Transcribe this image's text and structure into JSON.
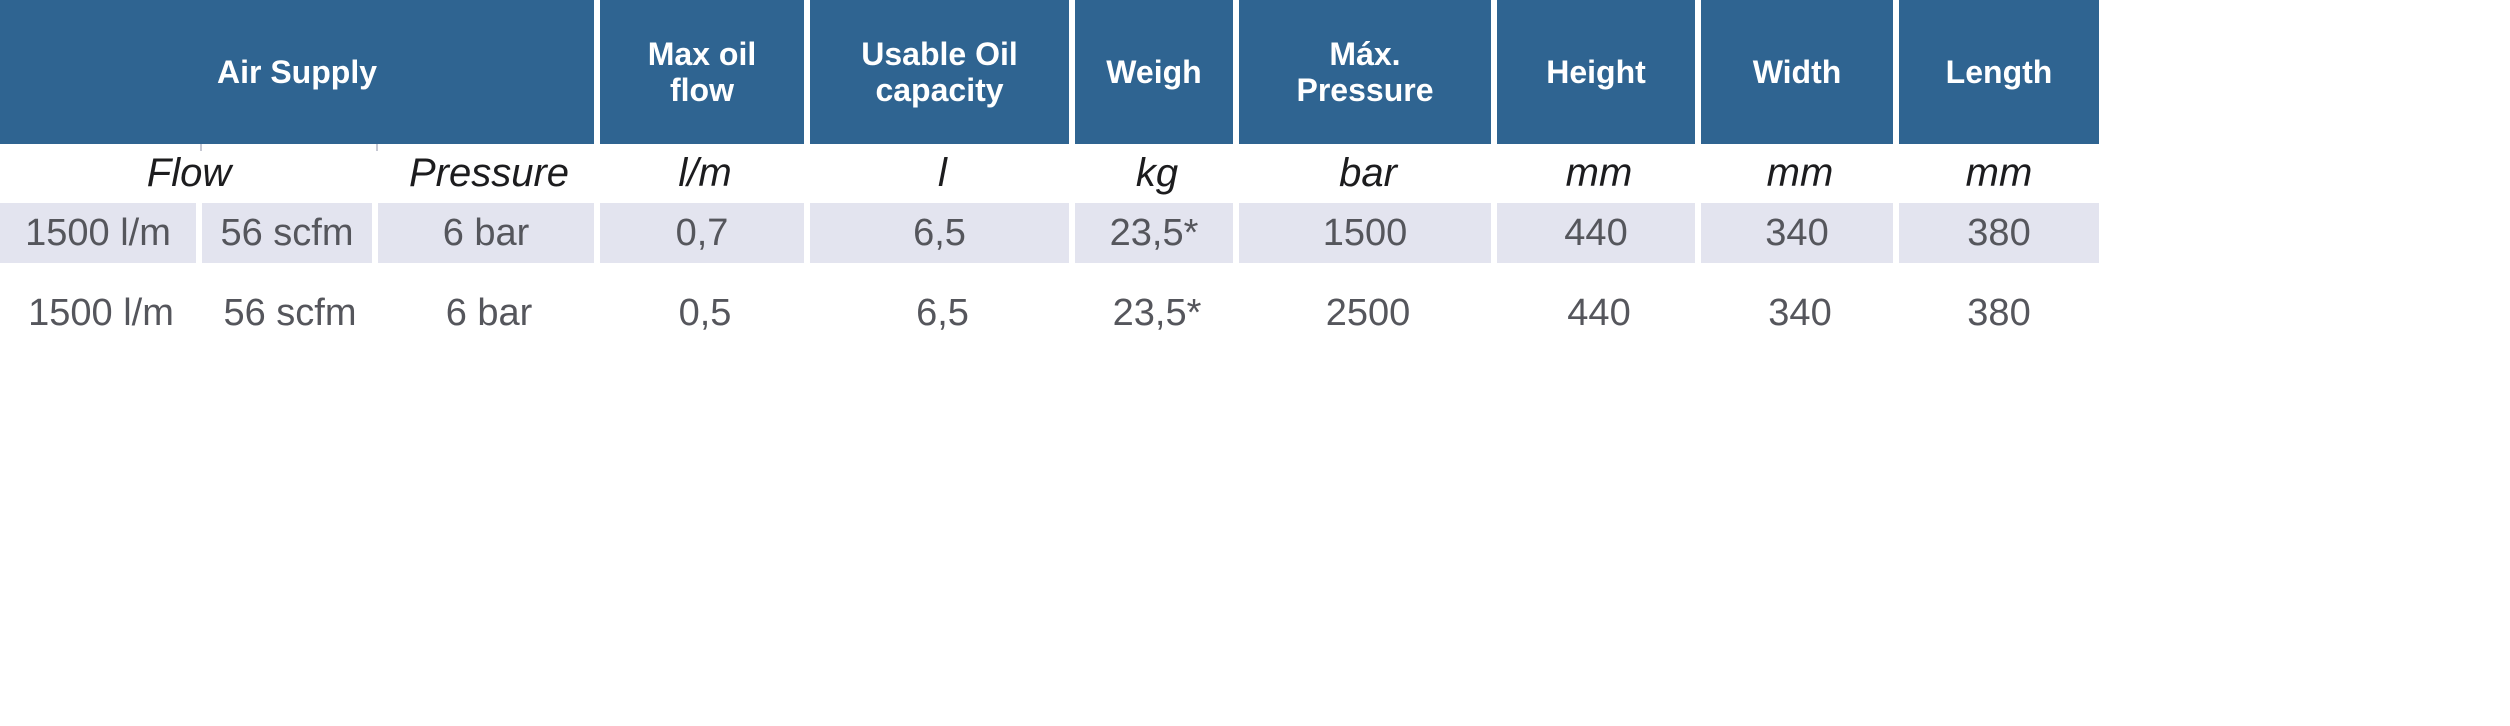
{
  "page": {
    "background": "#ffffff"
  },
  "table": {
    "accent_color": "#2f6491",
    "alt_row_color": "#e3e4ef",
    "header": {
      "air_supply": "Air Supply",
      "max_oil_flow": "Max oil\nflow",
      "usable_oil_capacity": "Usable Oil\ncapacity",
      "weigh": "Weigh",
      "max_pressure": "Máx.\nPressure",
      "height": "Height",
      "width": "Width",
      "length": "Length"
    },
    "units": {
      "flow": "Flow",
      "pressure": "Pressure",
      "max_oil_flow": "l/m",
      "usable_oil_capacity": "l",
      "weigh": "kg",
      "max_pressure": "bar",
      "height": "mm",
      "width": "mm",
      "length": "mm"
    },
    "rows": [
      [
        "1500 l/m",
        "56 scfm",
        "6 bar",
        "0,7",
        "6,5",
        "23,5*",
        "1500",
        "440",
        "340",
        "380"
      ],
      [
        "1500 l/m",
        "56 scfm",
        "6 bar",
        "0,5",
        "6,5",
        "23,5*",
        "2500",
        "440",
        "340",
        "380"
      ]
    ]
  }
}
